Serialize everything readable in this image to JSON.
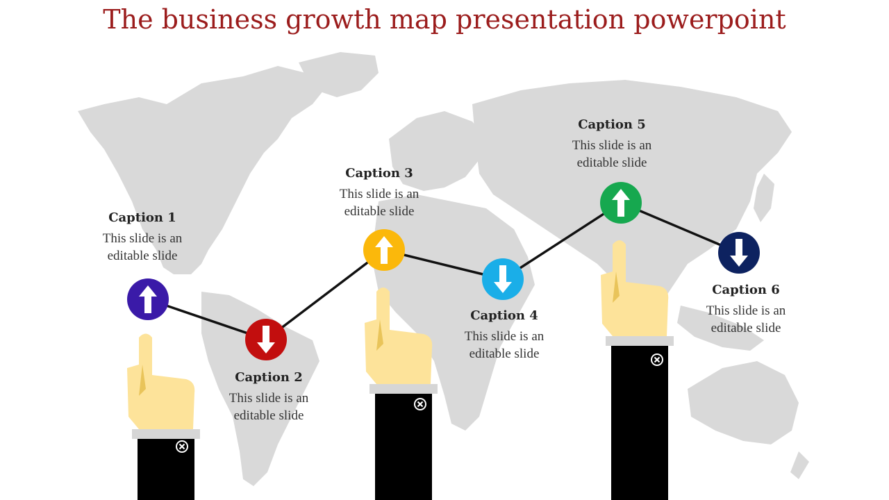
{
  "title": "The business growth map presentation powerpoint",
  "colors": {
    "title": "#9b1c1c",
    "map": "#d9d9d9",
    "line": "#111111",
    "hand": "#fde39a",
    "sleeve": "#000000",
    "cuff": "#d6d6d6"
  },
  "steps": [
    {
      "heading": "Caption 1",
      "text_line1": "This slide is an",
      "text_line2": "editable slide",
      "direction": "up",
      "color": "#3a1aa8"
    },
    {
      "heading": "Caption 2",
      "text_line1": "This slide is an",
      "text_line2": "editable slide",
      "direction": "down",
      "color": "#c20e0e"
    },
    {
      "heading": "Caption 3",
      "text_line1": "This slide is an",
      "text_line2": "editable slide",
      "direction": "up",
      "color": "#fbb80b"
    },
    {
      "heading": "Caption 4",
      "text_line1": "This slide is an",
      "text_line2": "editable slide",
      "direction": "down",
      "color": "#1aaee8"
    },
    {
      "heading": "Caption 5",
      "text_line1": "This slide is an",
      "text_line2": "editable slide",
      "direction": "up",
      "color": "#16a84f"
    },
    {
      "heading": "Caption 6",
      "text_line1": "This slide is an",
      "text_line2": "editable slide",
      "direction": "down",
      "color": "#0d2260"
    }
  ]
}
